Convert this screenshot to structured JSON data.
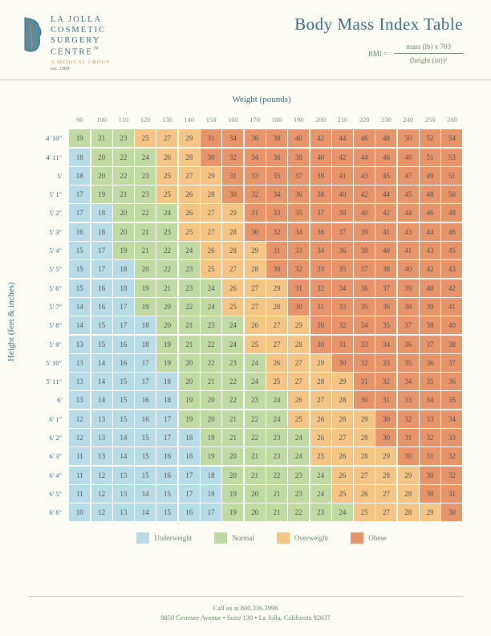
{
  "branding": {
    "name_lines": [
      "LA JOLLA",
      "COSMETIC",
      "SURGERY",
      "CENTRE"
    ],
    "tm": "™",
    "subtitle": "A MEDICAL GROUP",
    "est": "est. 1988",
    "logo_colors": {
      "face": "#5b8a9a",
      "outline": "#3a6a7c",
      "accent": "#d4975a"
    }
  },
  "title": "Body Mass Index Table",
  "formula": {
    "lhs": "BMI =",
    "numerator": "mass (lb) x 703",
    "denominator": "(height (in))²"
  },
  "axes": {
    "x_title": "Weight (pounds)",
    "y_title": "Height (feet & inches)"
  },
  "weights": [
    90,
    100,
    110,
    120,
    130,
    140,
    150,
    160,
    170,
    180,
    190,
    200,
    210,
    220,
    230,
    240,
    250,
    260
  ],
  "heights": [
    "4' 10\"",
    "4' 11\"",
    "5'",
    "5' 1\"",
    "5' 2\"",
    "5' 3\"",
    "5' 4\"",
    "5' 5\"",
    "5' 6\"",
    "5' 7\"",
    "5' 8\"",
    "5' 9\"",
    "5' 10\"",
    "5' 11\"",
    "6'",
    "6' 1\"",
    "6' 2\"",
    "6' 3\"",
    "6' 4\"",
    "6' 5\"",
    "6' 6\""
  ],
  "bmi": [
    [
      19,
      21,
      23,
      25,
      27,
      29,
      31,
      34,
      36,
      38,
      40,
      42,
      44,
      46,
      48,
      50,
      52,
      54
    ],
    [
      18,
      20,
      22,
      24,
      26,
      28,
      30,
      32,
      34,
      36,
      38,
      40,
      42,
      44,
      46,
      48,
      51,
      53
    ],
    [
      18,
      20,
      22,
      23,
      25,
      27,
      29,
      31,
      33,
      35,
      37,
      39,
      41,
      43,
      45,
      47,
      49,
      51
    ],
    [
      17,
      19,
      21,
      23,
      25,
      26,
      28,
      30,
      32,
      34,
      36,
      38,
      40,
      42,
      44,
      45,
      48,
      50
    ],
    [
      17,
      18,
      20,
      22,
      24,
      26,
      27,
      29,
      31,
      33,
      35,
      37,
      38,
      40,
      42,
      44,
      46,
      48
    ],
    [
      16,
      18,
      20,
      21,
      23,
      25,
      27,
      28,
      30,
      32,
      34,
      36,
      37,
      39,
      41,
      43,
      44,
      46
    ],
    [
      15,
      17,
      19,
      21,
      22,
      24,
      26,
      28,
      29,
      31,
      33,
      34,
      36,
      38,
      40,
      41,
      43,
      45
    ],
    [
      15,
      17,
      18,
      20,
      22,
      23,
      25,
      27,
      28,
      30,
      32,
      33,
      35,
      37,
      38,
      40,
      42,
      43
    ],
    [
      15,
      16,
      18,
      19,
      21,
      23,
      24,
      26,
      27,
      29,
      31,
      32,
      34,
      36,
      37,
      39,
      40,
      42
    ],
    [
      14,
      16,
      17,
      19,
      20,
      22,
      24,
      25,
      27,
      28,
      30,
      31,
      33,
      35,
      36,
      38,
      39,
      41
    ],
    [
      14,
      15,
      17,
      18,
      20,
      21,
      23,
      24,
      26,
      27,
      29,
      30,
      32,
      34,
      35,
      37,
      38,
      40
    ],
    [
      13,
      15,
      16,
      18,
      19,
      21,
      22,
      24,
      25,
      27,
      28,
      30,
      31,
      33,
      34,
      36,
      37,
      38
    ],
    [
      13,
      14,
      16,
      17,
      19,
      20,
      22,
      23,
      24,
      26,
      27,
      29,
      30,
      32,
      33,
      35,
      36,
      37
    ],
    [
      13,
      14,
      15,
      17,
      18,
      20,
      21,
      22,
      24,
      25,
      27,
      28,
      29,
      31,
      32,
      34,
      35,
      36
    ],
    [
      13,
      14,
      15,
      16,
      18,
      19,
      20,
      22,
      23,
      24,
      26,
      27,
      28,
      30,
      31,
      33,
      34,
      35
    ],
    [
      12,
      13,
      15,
      16,
      17,
      19,
      20,
      21,
      22,
      24,
      25,
      26,
      28,
      29,
      30,
      32,
      33,
      34
    ],
    [
      12,
      13,
      14,
      15,
      17,
      18,
      19,
      21,
      22,
      23,
      24,
      26,
      27,
      28,
      30,
      31,
      32,
      33
    ],
    [
      11,
      13,
      14,
      15,
      16,
      18,
      19,
      20,
      21,
      23,
      24,
      25,
      26,
      28,
      29,
      30,
      31,
      32
    ],
    [
      11,
      12,
      13,
      15,
      16,
      17,
      18,
      20,
      21,
      22,
      23,
      24,
      26,
      27,
      28,
      29,
      30,
      32
    ],
    [
      11,
      12,
      13,
      14,
      15,
      17,
      18,
      19,
      20,
      21,
      23,
      24,
      25,
      26,
      27,
      28,
      30,
      31
    ],
    [
      10,
      12,
      13,
      14,
      15,
      16,
      17,
      19,
      20,
      21,
      22,
      23,
      24,
      25,
      27,
      28,
      29,
      30
    ]
  ],
  "thresholds": {
    "underweight_max": 18,
    "normal_max": 24,
    "overweight_max": 29
  },
  "colors": {
    "underweight": "#b7dce8",
    "normal": "#c1d9a3",
    "overweight": "#f4c584",
    "obese": "#e8946a",
    "background": "#fdfcf5",
    "text_primary": "#3a6a7c",
    "text_secondary": "#6a8b6a",
    "cell_text": "#555555",
    "rule": "#c8c5b8"
  },
  "legend": [
    {
      "label": "Underweight",
      "key": "underweight"
    },
    {
      "label": "Normal",
      "key": "normal"
    },
    {
      "label": "Overweight",
      "key": "overweight"
    },
    {
      "label": "Obese",
      "key": "obese"
    }
  ],
  "footer": {
    "line1": "Call us at 800.336.3996",
    "line2": "9850 Genesee Avenue • Suite 130 • La Jolla, California 92037"
  },
  "cell_size": {
    "w": 26,
    "h": 22,
    "gap": 1.3
  },
  "font_sizes": {
    "title": 21,
    "axis_title": 11,
    "headers": 8.5,
    "cell": 9,
    "legend": 9,
    "footer": 8.5
  }
}
